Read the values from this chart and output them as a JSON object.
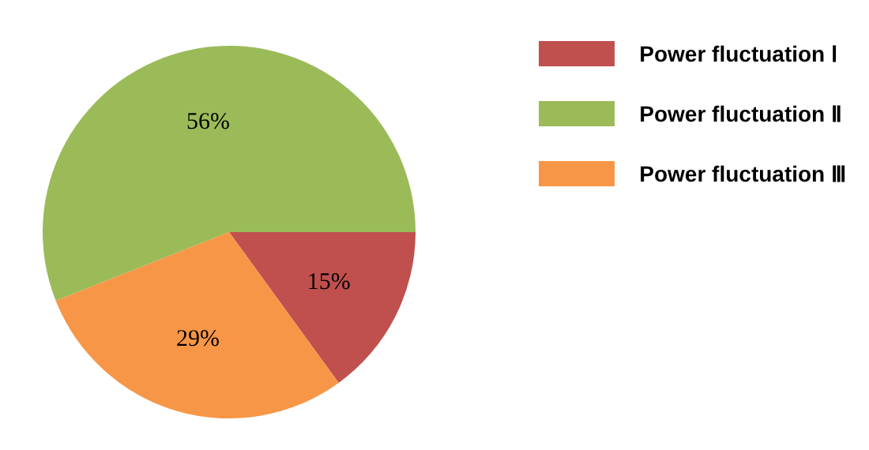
{
  "chart_data": {
    "type": "pie",
    "categories": [
      "Power fluctuation Ⅰ",
      "Power fluctuation Ⅱ",
      "Power fluctuation Ⅲ"
    ],
    "values": [
      15,
      56,
      29
    ],
    "value_labels": [
      "15%",
      "56%",
      "29%"
    ],
    "colors": [
      "#c0504d",
      "#9bbb59",
      "#f79646"
    ],
    "legend": "top right"
  }
}
